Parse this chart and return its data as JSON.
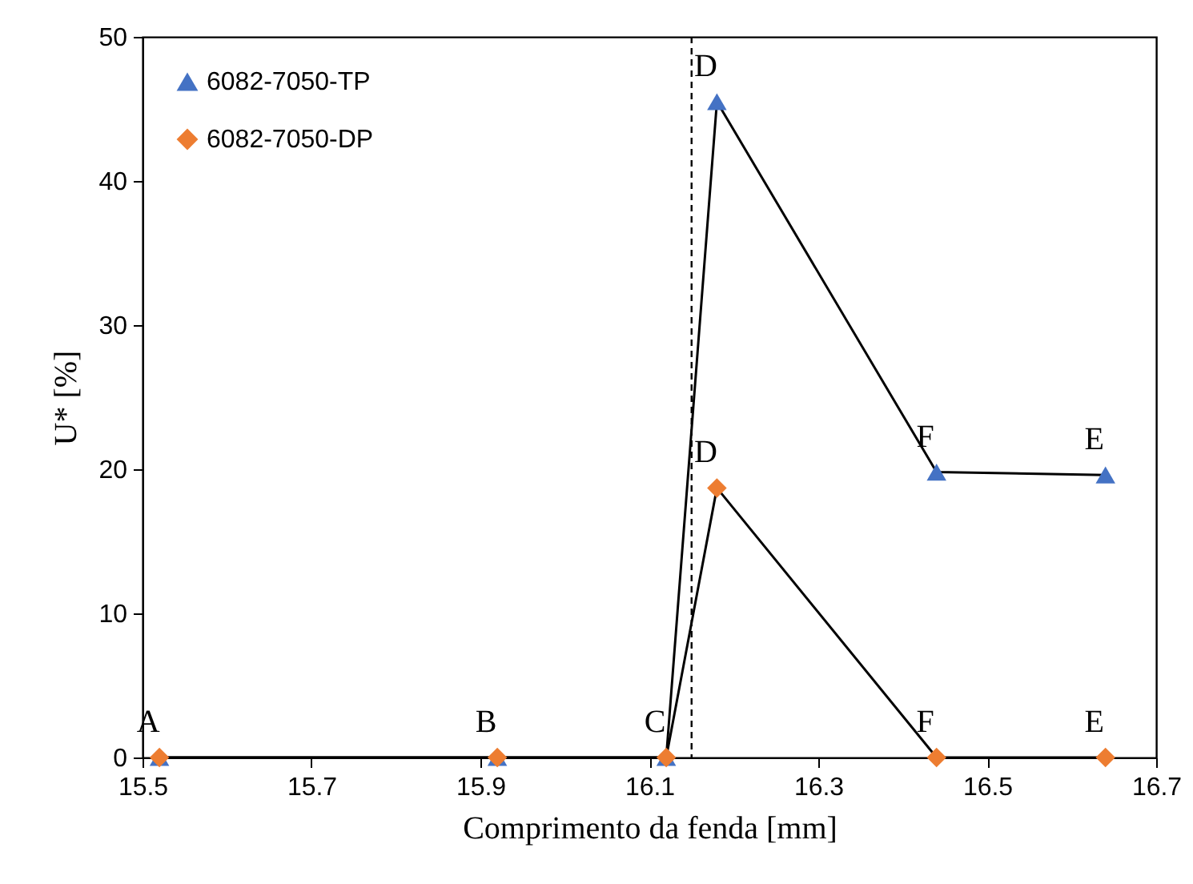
{
  "chart_data": {
    "type": "line",
    "xlabel": "Comprimento da fenda [mm]",
    "ylabel": "U* [%]",
    "x": [
      15.52,
      15.92,
      16.12,
      16.18,
      16.44,
      16.64
    ],
    "series": [
      {
        "name": "6082-7050-TP",
        "color": "#4472c4",
        "marker": "triangle",
        "values": [
          0,
          0,
          0,
          45.5,
          19.8,
          19.6
        ]
      },
      {
        "name": "6082-7050-DP",
        "color": "#ed7d31",
        "marker": "diamond",
        "values": [
          0,
          0,
          0,
          18.7,
          0,
          0
        ]
      }
    ],
    "xlim": [
      15.5,
      16.7
    ],
    "xticks": [
      15.5,
      15.7,
      15.9,
      16.1,
      16.3,
      16.5,
      16.7
    ],
    "ylim": [
      0,
      50
    ],
    "yticks": [
      0,
      10,
      20,
      30,
      40,
      50
    ],
    "ref_lines": [
      {
        "axis": "x",
        "value": 16.15,
        "line_style": "dashed",
        "color": "#000000"
      }
    ],
    "annotations": [
      {
        "text": "A",
        "x": 15.52,
        "y": 0
      },
      {
        "text": "B",
        "x": 15.92,
        "y": 0
      },
      {
        "text": "C",
        "x": 16.12,
        "y": 0
      },
      {
        "text": "D",
        "x": 16.18,
        "y": 45.5
      },
      {
        "text": "F",
        "x": 16.44,
        "y": 19.8
      },
      {
        "text": "E",
        "x": 16.64,
        "y": 19.6
      },
      {
        "text": "D",
        "x": 16.18,
        "y": 18.7
      },
      {
        "text": "F",
        "x": 16.44,
        "y": 0
      },
      {
        "text": "E",
        "x": 16.64,
        "y": 0
      }
    ],
    "grid": false,
    "legend": "top left",
    "line_style": "solid"
  }
}
